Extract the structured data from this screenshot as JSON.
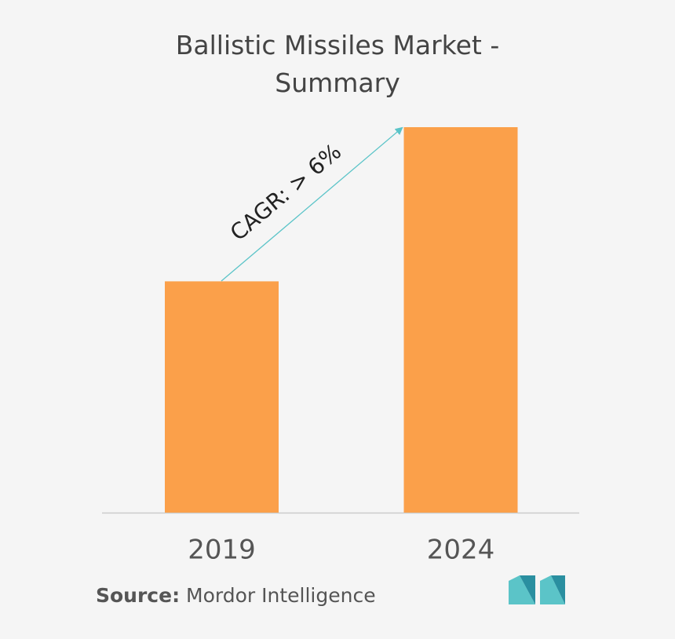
{
  "chart_data": {
    "type": "bar",
    "title": "Ballistic Missiles Market - Summary",
    "categories": [
      "2019",
      "2024"
    ],
    "values": [
      60,
      100
    ],
    "color": "#fba04a",
    "ylim": [
      0,
      100
    ],
    "annotation": "CAGR: > 6%",
    "source_label": "Source:",
    "source": "Mordor Intelligence"
  }
}
